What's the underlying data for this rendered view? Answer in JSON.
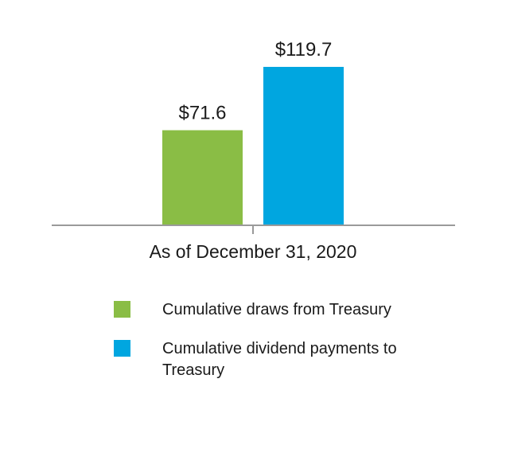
{
  "chart_data": {
    "type": "bar",
    "categories": [
      "As of December 31, 2020"
    ],
    "series": [
      {
        "name": "Cumulative draws from Treasury",
        "values": [
          71.6
        ],
        "label": "$71.6",
        "color": "#8abd45"
      },
      {
        "name": "Cumulative dividend payments to Treasury",
        "values": [
          119.7
        ],
        "label": "$119.7",
        "color": "#00a6e0"
      }
    ],
    "xlabel": "",
    "ylabel": "",
    "ylim": [
      0,
      119.7
    ],
    "grid": false,
    "legend_position": "bottom"
  },
  "legend": {
    "items": [
      {
        "label": "Cumulative draws from Treasury",
        "color": "#8abd45"
      },
      {
        "label": "Cumulative dividend payments to Treasury",
        "color": "#00a6e0"
      }
    ]
  },
  "colors": {
    "axis": "#9a9a9a",
    "text": "#1a1a1a"
  }
}
